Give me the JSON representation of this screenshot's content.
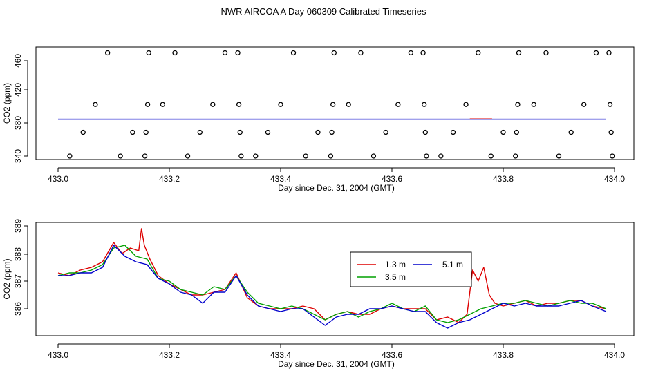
{
  "title": "NWR AIRCOA A  Day 060309  Calibrated Timeseries",
  "chart_data": [
    {
      "type": "scatter",
      "name": "top-panel",
      "xlabel": "Day since Dec. 31, 2004 (GMT)",
      "ylabel": "CO2 (ppm)",
      "xlim": [
        433.0,
        434.0
      ],
      "ylim": [
        330,
        470
      ],
      "xticks": [
        "433.0",
        "433.2",
        "433.4",
        "433.6",
        "433.8",
        "434.0"
      ],
      "yticks": [
        "340",
        "380",
        "420",
        "460"
      ],
      "calibration_points": [
        {
          "x": 433.021,
          "y": 340
        },
        {
          "x": 433.045,
          "y": 370
        },
        {
          "x": 433.067,
          "y": 405
        },
        {
          "x": 433.089,
          "y": 470
        },
        {
          "x": 433.112,
          "y": 340
        },
        {
          "x": 433.134,
          "y": 370
        },
        {
          "x": 433.156,
          "y": 340
        },
        {
          "x": 433.158,
          "y": 370
        },
        {
          "x": 433.161,
          "y": 405
        },
        {
          "x": 433.163,
          "y": 470
        },
        {
          "x": 433.188,
          "y": 405
        },
        {
          "x": 433.21,
          "y": 470
        },
        {
          "x": 433.233,
          "y": 340
        },
        {
          "x": 433.255,
          "y": 370
        },
        {
          "x": 433.278,
          "y": 405
        },
        {
          "x": 433.3,
          "y": 470
        },
        {
          "x": 433.323,
          "y": 470
        },
        {
          "x": 433.325,
          "y": 405
        },
        {
          "x": 433.327,
          "y": 370
        },
        {
          "x": 433.329,
          "y": 340
        },
        {
          "x": 433.355,
          "y": 340
        },
        {
          "x": 433.377,
          "y": 370
        },
        {
          "x": 433.4,
          "y": 405
        },
        {
          "x": 433.423,
          "y": 470
        },
        {
          "x": 433.445,
          "y": 340
        },
        {
          "x": 433.467,
          "y": 370
        },
        {
          "x": 433.49,
          "y": 340
        },
        {
          "x": 433.492,
          "y": 370
        },
        {
          "x": 433.494,
          "y": 405
        },
        {
          "x": 433.496,
          "y": 470
        },
        {
          "x": 433.522,
          "y": 405
        },
        {
          "x": 433.544,
          "y": 470
        },
        {
          "x": 433.567,
          "y": 340
        },
        {
          "x": 433.589,
          "y": 370
        },
        {
          "x": 433.611,
          "y": 405
        },
        {
          "x": 433.634,
          "y": 470
        },
        {
          "x": 433.656,
          "y": 470
        },
        {
          "x": 433.658,
          "y": 405
        },
        {
          "x": 433.66,
          "y": 370
        },
        {
          "x": 433.662,
          "y": 340
        },
        {
          "x": 433.688,
          "y": 340
        },
        {
          "x": 433.71,
          "y": 370
        },
        {
          "x": 433.733,
          "y": 405
        },
        {
          "x": 433.755,
          "y": 470
        },
        {
          "x": 433.778,
          "y": 340
        },
        {
          "x": 433.8,
          "y": 370
        },
        {
          "x": 433.822,
          "y": 340
        },
        {
          "x": 433.824,
          "y": 370
        },
        {
          "x": 433.826,
          "y": 405
        },
        {
          "x": 433.828,
          "y": 470
        },
        {
          "x": 433.855,
          "y": 405
        },
        {
          "x": 433.877,
          "y": 470
        },
        {
          "x": 433.9,
          "y": 340
        },
        {
          "x": 433.922,
          "y": 370
        },
        {
          "x": 433.945,
          "y": 405
        },
        {
          "x": 433.967,
          "y": 470
        },
        {
          "x": 433.99,
          "y": 470
        },
        {
          "x": 433.992,
          "y": 405
        },
        {
          "x": 433.994,
          "y": 370
        },
        {
          "x": 433.996,
          "y": 340
        }
      ],
      "series_line": {
        "x_start": 433.0,
        "x_end": 433.985,
        "y": 386.4
      }
    },
    {
      "type": "line",
      "name": "bottom-panel",
      "xlabel": "Day since Dec. 31, 2004 (GMT)",
      "ylabel": "CO2 (ppm)",
      "xlim": [
        433.0,
        434.0
      ],
      "ylim": [
        384.9,
        389.0
      ],
      "xticks": [
        "433.0",
        "433.2",
        "433.4",
        "433.6",
        "433.8",
        "434.0"
      ],
      "yticks": [
        "386",
        "387",
        "388",
        "389"
      ],
      "legend": {
        "placement": "center-right",
        "entries": [
          "1.3 m",
          "3.5 m",
          "5.1 m"
        ]
      },
      "series": [
        {
          "name": "1.3 m",
          "color": "#dd0000",
          "x": [
            433.0,
            433.02,
            433.04,
            433.06,
            433.08,
            433.1,
            433.115,
            433.13,
            433.145,
            433.15,
            433.155,
            433.165,
            433.18,
            433.2,
            433.22,
            433.24,
            433.26,
            433.28,
            433.3,
            433.32,
            433.34,
            433.36,
            433.38,
            433.4,
            433.42,
            433.44,
            433.46,
            433.48,
            433.5,
            433.52,
            433.54,
            433.56,
            433.58,
            433.6,
            433.62,
            433.64,
            433.66,
            433.68,
            433.7,
            433.72,
            433.735,
            433.745,
            433.755,
            433.765,
            433.775,
            433.785,
            433.8,
            433.82,
            433.84,
            433.86,
            433.88,
            433.9,
            433.92,
            433.94,
            433.96,
            433.985
          ],
          "y": [
            387.3,
            387.2,
            387.4,
            387.5,
            387.7,
            388.4,
            388.0,
            388.2,
            388.1,
            388.9,
            388.3,
            387.8,
            387.2,
            386.9,
            386.7,
            386.5,
            386.5,
            386.6,
            386.7,
            387.3,
            386.4,
            386.1,
            386.0,
            386.0,
            386.0,
            386.1,
            386.0,
            385.6,
            385.8,
            385.9,
            385.8,
            385.8,
            386.0,
            386.1,
            386.0,
            386.0,
            386.0,
            385.6,
            385.7,
            385.5,
            385.8,
            387.4,
            387.0,
            387.5,
            386.5,
            386.2,
            386.1,
            386.2,
            386.3,
            386.1,
            386.2,
            386.2,
            386.3,
            386.3,
            386.1,
            386.0
          ]
        },
        {
          "name": "3.5 m",
          "color": "#00a000",
          "x": [
            433.0,
            433.02,
            433.04,
            433.06,
            433.08,
            433.1,
            433.12,
            433.14,
            433.16,
            433.18,
            433.2,
            433.22,
            433.24,
            433.26,
            433.28,
            433.3,
            433.32,
            433.34,
            433.36,
            433.38,
            433.4,
            433.42,
            433.44,
            433.46,
            433.48,
            433.5,
            433.52,
            433.54,
            433.56,
            433.58,
            433.6,
            433.62,
            433.64,
            433.66,
            433.68,
            433.7,
            433.72,
            433.74,
            433.76,
            433.78,
            433.8,
            433.82,
            433.84,
            433.86,
            433.88,
            433.9,
            433.92,
            433.94,
            433.96,
            433.985
          ],
          "y": [
            387.2,
            387.3,
            387.3,
            387.4,
            387.6,
            388.2,
            388.3,
            387.9,
            387.8,
            387.1,
            387.0,
            386.7,
            386.6,
            386.5,
            386.8,
            386.7,
            387.2,
            386.6,
            386.2,
            386.1,
            386.0,
            386.1,
            386.0,
            385.8,
            385.6,
            385.8,
            385.9,
            385.7,
            385.9,
            386.0,
            386.2,
            386.0,
            385.9,
            386.1,
            385.6,
            385.5,
            385.6,
            385.8,
            386.0,
            386.1,
            386.2,
            386.2,
            386.3,
            386.2,
            386.1,
            386.2,
            386.3,
            386.2,
            386.2,
            386.0
          ]
        },
        {
          "name": "5.1 m",
          "color": "#0000cc",
          "x": [
            433.0,
            433.02,
            433.04,
            433.06,
            433.08,
            433.1,
            433.12,
            433.14,
            433.16,
            433.18,
            433.2,
            433.22,
            433.24,
            433.26,
            433.28,
            433.3,
            433.32,
            433.34,
            433.36,
            433.38,
            433.4,
            433.42,
            433.44,
            433.46,
            433.48,
            433.5,
            433.52,
            433.54,
            433.56,
            433.58,
            433.6,
            433.62,
            433.64,
            433.66,
            433.68,
            433.7,
            433.72,
            433.74,
            433.76,
            433.78,
            433.8,
            433.82,
            433.84,
            433.86,
            433.88,
            433.9,
            433.92,
            433.94,
            433.96,
            433.985
          ],
          "y": [
            387.2,
            387.2,
            387.3,
            387.3,
            387.5,
            388.3,
            387.9,
            387.7,
            387.6,
            387.1,
            386.9,
            386.6,
            386.5,
            386.2,
            386.6,
            386.6,
            387.2,
            386.5,
            386.1,
            386.0,
            385.9,
            386.0,
            386.0,
            385.7,
            385.4,
            385.7,
            385.8,
            385.8,
            386.0,
            386.0,
            386.1,
            386.0,
            385.9,
            385.9,
            385.5,
            385.3,
            385.5,
            385.6,
            385.8,
            386.0,
            386.2,
            386.1,
            386.2,
            386.1,
            386.1,
            386.1,
            386.2,
            386.3,
            386.1,
            385.9
          ]
        }
      ]
    }
  ]
}
